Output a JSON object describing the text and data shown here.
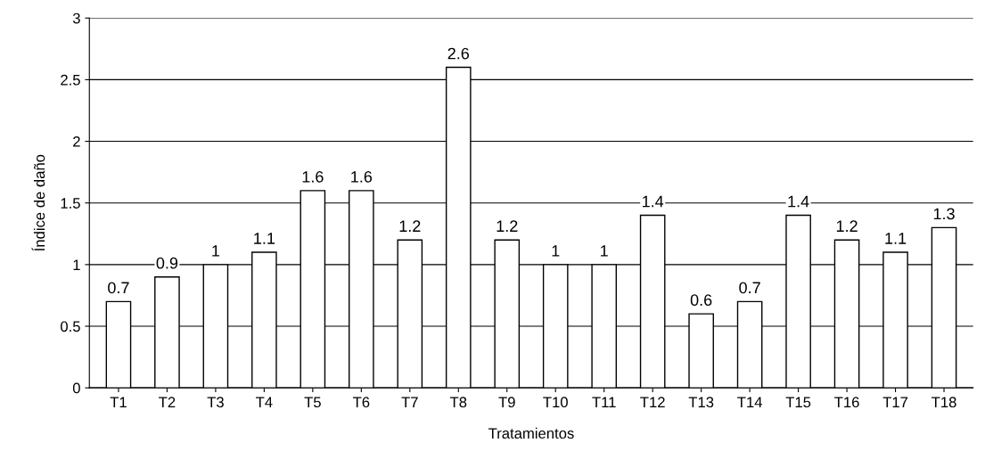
{
  "chart_data": {
    "type": "bar",
    "xlabel": "Tratamientos",
    "ylabel": "Índice de daño",
    "categories": [
      "T1",
      "T2",
      "T3",
      "T4",
      "T5",
      "T6",
      "T7",
      "T8",
      "T9",
      "T10",
      "T11",
      "T12",
      "T13",
      "T14",
      "T15",
      "T16",
      "T17",
      "T18"
    ],
    "values": [
      0.7,
      0.9,
      1,
      1.1,
      1.6,
      1.6,
      1.2,
      2.6,
      1.2,
      1,
      1,
      1.4,
      0.6,
      0.7,
      1.4,
      1.2,
      1.1,
      1.3
    ],
    "color": "#ffffff",
    "ylim": [
      0,
      3
    ],
    "yticks": [
      0,
      0.5,
      1,
      1.5,
      2,
      2.5,
      3
    ],
    "grid": "y",
    "data_labels": true
  }
}
